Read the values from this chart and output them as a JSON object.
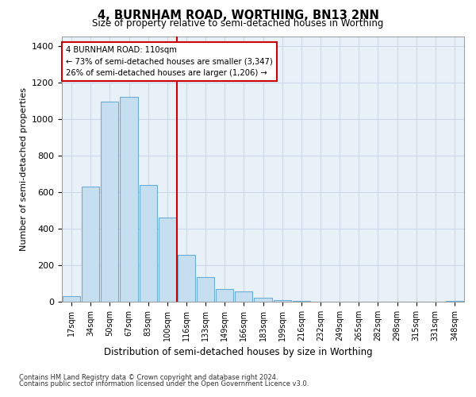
{
  "title": "4, BURNHAM ROAD, WORTHING, BN13 2NN",
  "subtitle": "Size of property relative to semi-detached houses in Worthing",
  "xlabel": "Distribution of semi-detached houses by size in Worthing",
  "ylabel": "Number of semi-detached properties",
  "footnote1": "Contains HM Land Registry data © Crown copyright and database right 2024.",
  "footnote2": "Contains public sector information licensed under the Open Government Licence v3.0.",
  "annotation_line1": "4 BURNHAM ROAD: 110sqm",
  "annotation_line2": "← 73% of semi-detached houses are smaller (3,347)",
  "annotation_line3": "26% of semi-detached houses are larger (1,206) →",
  "bar_color": "#c5dff0",
  "bar_edge_color": "#6aaed6",
  "vline_color": "#cc0000",
  "grid_color": "#ccd9e8",
  "background_color": "#e8f0f8",
  "categories": [
    "17sqm",
    "34sqm",
    "50sqm",
    "67sqm",
    "83sqm",
    "100sqm",
    "116sqm",
    "133sqm",
    "149sqm",
    "166sqm",
    "183sqm",
    "199sqm",
    "216sqm",
    "232sqm",
    "249sqm",
    "265sqm",
    "282sqm",
    "298sqm",
    "315sqm",
    "331sqm",
    "348sqm"
  ],
  "values": [
    30,
    630,
    1095,
    1120,
    640,
    460,
    255,
    135,
    70,
    55,
    20,
    8,
    3,
    2,
    1,
    1,
    0,
    0,
    0,
    0,
    5
  ],
  "vline_position": 5.5,
  "ylim": [
    0,
    1450
  ],
  "yticks": [
    0,
    200,
    400,
    600,
    800,
    1000,
    1200,
    1400
  ]
}
